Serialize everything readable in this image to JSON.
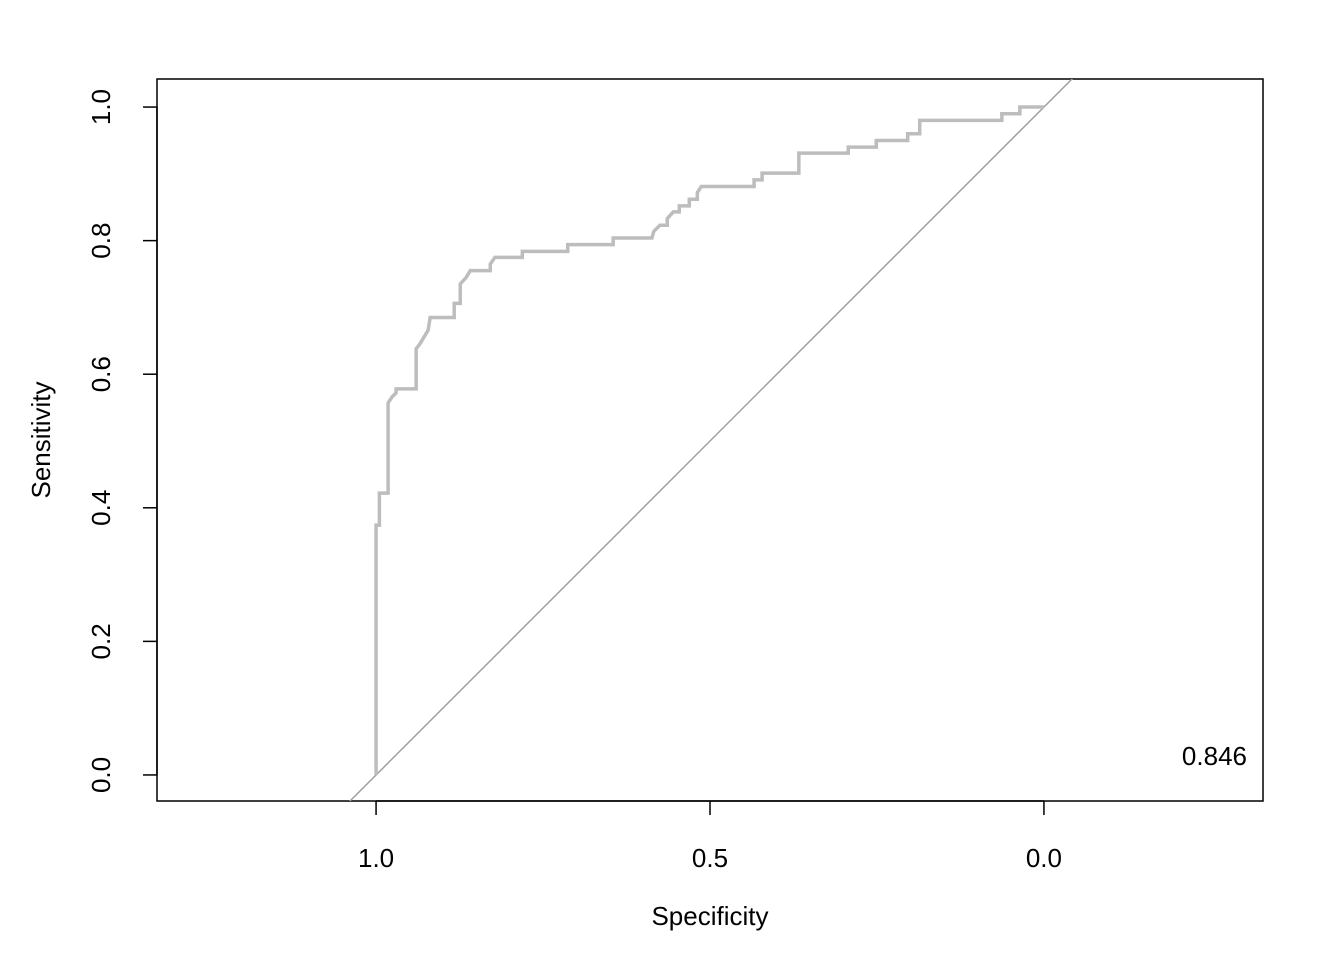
{
  "chart_data": {
    "type": "line",
    "xlabel": "Specificity",
    "ylabel": "Sensitivity",
    "annotation": "0.846",
    "x": [
      1.0,
      1.0,
      0.995,
      0.995,
      0.982,
      0.982,
      0.976,
      0.97,
      0.97,
      0.94,
      0.94,
      0.934,
      0.928,
      0.922,
      0.919,
      0.883,
      0.883,
      0.874,
      0.874,
      0.865,
      0.859,
      0.829,
      0.829,
      0.822,
      0.781,
      0.781,
      0.713,
      0.713,
      0.645,
      0.645,
      0.587,
      0.584,
      0.575,
      0.564,
      0.564,
      0.555,
      0.546,
      0.546,
      0.531,
      0.531,
      0.519,
      0.519,
      0.513,
      0.434,
      0.434,
      0.422,
      0.422,
      0.367,
      0.367,
      0.293,
      0.293,
      0.251,
      0.251,
      0.204,
      0.204,
      0.186,
      0.186,
      0.063,
      0.063,
      0.036,
      0.036,
      0.0
    ],
    "values": [
      0.0,
      0.374,
      0.374,
      0.422,
      0.422,
      0.557,
      0.566,
      0.572,
      0.578,
      0.578,
      0.638,
      0.646,
      0.656,
      0.666,
      0.685,
      0.685,
      0.706,
      0.706,
      0.735,
      0.745,
      0.755,
      0.755,
      0.765,
      0.775,
      0.775,
      0.784,
      0.784,
      0.794,
      0.794,
      0.804,
      0.804,
      0.814,
      0.823,
      0.823,
      0.833,
      0.843,
      0.843,
      0.852,
      0.852,
      0.862,
      0.862,
      0.872,
      0.881,
      0.881,
      0.891,
      0.891,
      0.901,
      0.901,
      0.931,
      0.931,
      0.94,
      0.94,
      0.95,
      0.95,
      0.96,
      0.96,
      0.98,
      0.98,
      0.99,
      0.99,
      1.0,
      1.0
    ],
    "color": "#bdbdbd",
    "diagonal_color": "#a0a0a0",
    "xlim": [
      1.328,
      -0.328
    ],
    "ylim": [
      -0.039,
      1.042
    ],
    "xticks": [
      {
        "value": 1,
        "label": "1.0"
      },
      0.5,
      {
        "value": 0,
        "label": "0.0"
      }
    ],
    "yticks": [
      {
        "value": 0,
        "label": "0.0"
      },
      0.2,
      0.4,
      0.6,
      0.8,
      {
        "value": 1,
        "label": "1.0"
      }
    ]
  }
}
